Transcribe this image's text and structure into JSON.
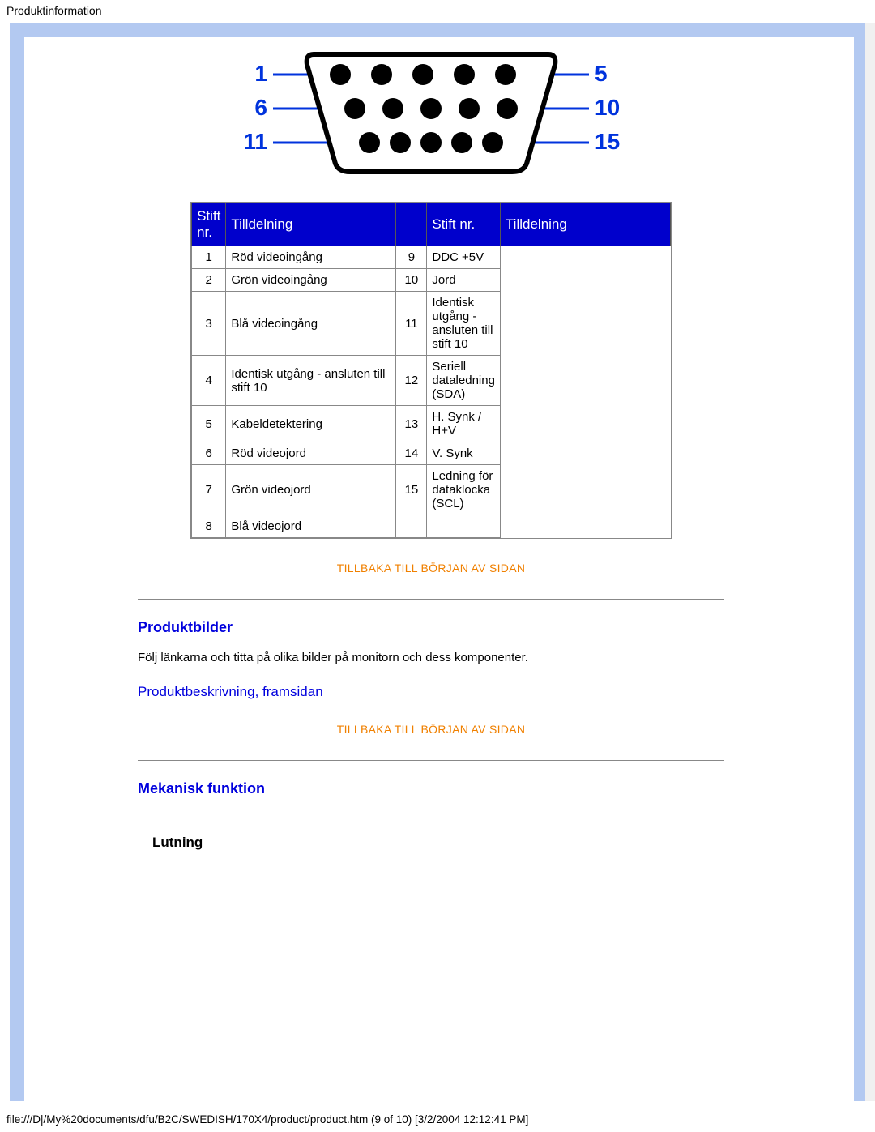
{
  "header": {
    "title": "Produktinformation"
  },
  "diagram": {
    "labels_left": [
      "1",
      "6",
      "11"
    ],
    "labels_right": [
      "5",
      "10",
      "15"
    ],
    "color_label": "#0033dd",
    "color_outline": "#000000",
    "color_pin": "#000000"
  },
  "pin_table": {
    "header": {
      "nr": "Stift nr.",
      "assign": "Tilldelning"
    },
    "header_bg": "#0000cc",
    "header_fg": "#ffffff",
    "left": [
      {
        "n": "1",
        "t": "Röd videoingång"
      },
      {
        "n": "2",
        "t": "Grön videoingång"
      },
      {
        "n": "3",
        "t": "Blå videoingång"
      },
      {
        "n": "4",
        "t": "Identisk utgång - ansluten till stift 10"
      },
      {
        "n": "5",
        "t": "Kabeldetektering"
      },
      {
        "n": "6",
        "t": "Röd videojord"
      },
      {
        "n": "7",
        "t": "Grön videojord"
      },
      {
        "n": "8",
        "t": "Blå videojord"
      }
    ],
    "right": [
      {
        "n": "9",
        "t": "DDC +5V"
      },
      {
        "n": "10",
        "t": "Jord"
      },
      {
        "n": "11",
        "t": "Identisk utgång - ansluten till stift 10"
      },
      {
        "n": "12",
        "t": "Seriell dataledning (SDA)"
      },
      {
        "n": "13",
        "t": "H. Synk / H+V"
      },
      {
        "n": "14",
        "t": "V. Synk"
      },
      {
        "n": "15",
        "t": "Ledning för dataklocka (SCL)"
      },
      {
        "n": "",
        "t": ""
      }
    ]
  },
  "links": {
    "back_to_top": "TILLBAKA TILL BÖRJAN AV SIDAN",
    "product_desc_front": "Produktbeskrivning, framsidan"
  },
  "sections": {
    "product_images": {
      "heading": "Produktbilder",
      "body": "Följ länkarna och titta på olika bilder på monitorn och dess komponenter."
    },
    "mechanical": {
      "heading": "Mekanisk funktion",
      "sub": "Lutning"
    }
  },
  "footer": {
    "path": "file:///D|/My%20documents/dfu/B2C/SWEDISH/170X4/product/product.htm (9 of 10) [3/2/2004 12:12:41 PM]"
  }
}
